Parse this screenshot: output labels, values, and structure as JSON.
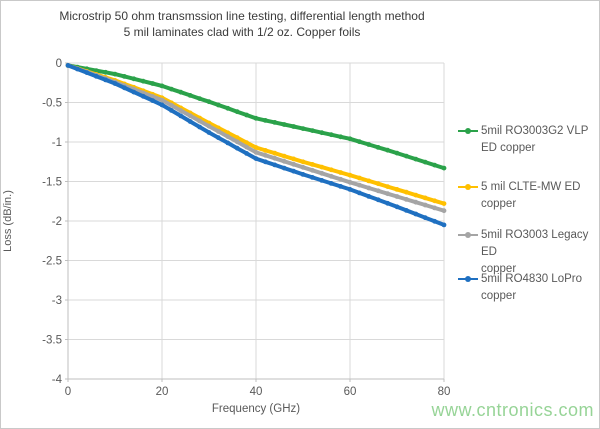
{
  "figure": {
    "title_line1": "Microstrip 50 ohm transmssion line testing, differential length method",
    "title_line2": "5 mil laminates clad with 1/2 oz. Copper foils",
    "watermark": "www.cntronics.com"
  },
  "colors": {
    "grid": "#d9d9d9",
    "axis": "#bfbfbf",
    "tick_text": "#595959",
    "title_text": "#3b3b3b",
    "watermark_green": "#97d497"
  },
  "chart_data": {
    "type": "line",
    "title": "Microstrip 50 ohm transmssion line testing, differential length method",
    "subtitle": "5 mil laminates clad with 1/2 oz. Copper foils",
    "xlabel": "Frequency (GHz)",
    "ylabel": "Loss (dB/in.)",
    "xlim": [
      0,
      80
    ],
    "ylim": [
      -4,
      0
    ],
    "x_ticks": [
      0,
      20,
      40,
      60,
      80
    ],
    "y_ticks": [
      0,
      -0.5,
      -1,
      -1.5,
      -2,
      -2.5,
      -3,
      -3.5,
      -4
    ],
    "grid": true,
    "legend_position": "right",
    "x": [
      0,
      10,
      20,
      30,
      40,
      50,
      60,
      70,
      80
    ],
    "series": [
      {
        "name": "5mil RO3003G2 VLP ED copper",
        "legend_lines": [
          "5mil RO3003G2 VLP",
          "ED copper"
        ],
        "color": "#2ba24a",
        "values": [
          -0.03,
          -0.14,
          -0.29,
          -0.49,
          -0.7,
          -0.83,
          -0.96,
          -1.14,
          -1.33
        ]
      },
      {
        "name": "5 mil CLTE-MW ED copper",
        "legend_lines": [
          "5 mil CLTE-MW ED",
          "copper"
        ],
        "color": "#ffc000",
        "values": [
          -0.03,
          -0.22,
          -0.44,
          -0.76,
          -1.07,
          -1.25,
          -1.42,
          -1.6,
          -1.78
        ]
      },
      {
        "name": "5mil RO3003 Legacy ED copper",
        "legend_lines": [
          "5mil RO3003 Legacy ED",
          "copper"
        ],
        "color": "#a5a5a5",
        "values": [
          -0.03,
          -0.24,
          -0.47,
          -0.8,
          -1.13,
          -1.32,
          -1.51,
          -1.69,
          -1.87
        ]
      },
      {
        "name": "5mil RO4830 LoPro copper",
        "legend_lines": [
          "5mil RO4830 LoPro",
          "copper"
        ],
        "color": "#1f70c1",
        "values": [
          -0.03,
          -0.26,
          -0.53,
          -0.88,
          -1.21,
          -1.41,
          -1.6,
          -1.82,
          -2.05
        ]
      }
    ]
  }
}
